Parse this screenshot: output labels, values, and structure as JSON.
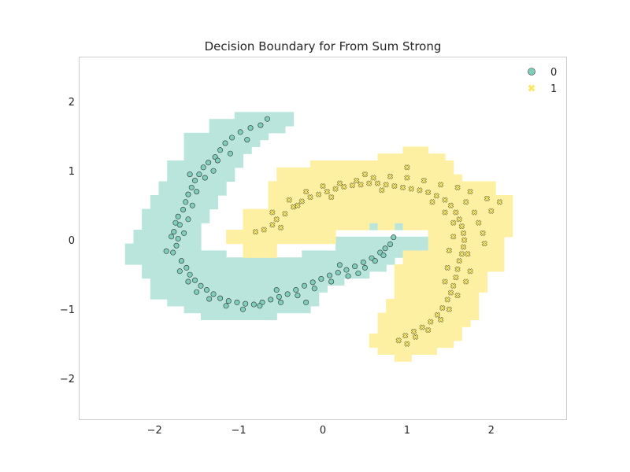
{
  "chart_data": {
    "type": "scatter",
    "title": "Decision Boundary for From Sum Strong",
    "xlabel": "",
    "ylabel": "",
    "xlim": [
      -2.9,
      2.9
    ],
    "ylim": [
      -2.6,
      2.65
    ],
    "x_ticks": [
      -2,
      -1,
      0,
      1,
      2
    ],
    "y_ticks": [
      -2,
      -1,
      0,
      1,
      2
    ],
    "x_tick_labels": [
      "−2",
      "−1",
      "0",
      "1",
      "2"
    ],
    "y_tick_labels": [
      "−2",
      "−1",
      "0",
      "1",
      "2"
    ],
    "grid": false,
    "legend_placement": "top-right",
    "colors": {
      "class0_point": "#7fcdbb",
      "class0_region": "#b9e5dc",
      "class1_point": "#fde866",
      "class1_region": "#fdf0a3",
      "marker_edge": "#333333",
      "axes_edge": "#cccccc"
    },
    "series": [
      {
        "name": "0",
        "marker": "circle",
        "points": [
          [
            -1.78,
            -0.18
          ],
          [
            -1.86,
            -0.16
          ],
          [
            -1.74,
            -0.08
          ],
          [
            -1.72,
            0.02
          ],
          [
            -1.77,
            0.12
          ],
          [
            -1.7,
            0.22
          ],
          [
            -1.72,
            0.34
          ],
          [
            -1.66,
            0.44
          ],
          [
            -1.63,
            0.55
          ],
          [
            -1.6,
            0.66
          ],
          [
            -1.56,
            0.76
          ],
          [
            -1.52,
            0.86
          ],
          [
            -1.47,
            0.95
          ],
          [
            -1.42,
            1.05
          ],
          [
            -1.36,
            1.12
          ],
          [
            -1.28,
            1.2
          ],
          [
            -1.22,
            1.3
          ],
          [
            -1.16,
            1.4
          ],
          [
            -1.08,
            1.48
          ],
          [
            -0.98,
            1.56
          ],
          [
            -0.86,
            1.62
          ],
          [
            -0.74,
            1.66
          ],
          [
            -0.66,
            1.75
          ],
          [
            -1.68,
            -0.3
          ],
          [
            -1.62,
            -0.4
          ],
          [
            -1.58,
            -0.5
          ],
          [
            -1.52,
            -0.58
          ],
          [
            -1.45,
            -0.66
          ],
          [
            -1.38,
            -0.72
          ],
          [
            -1.3,
            -0.78
          ],
          [
            -1.22,
            -0.84
          ],
          [
            -1.12,
            -0.88
          ],
          [
            -1.02,
            -0.9
          ],
          [
            -0.92,
            -0.92
          ],
          [
            -0.82,
            -0.93
          ],
          [
            -0.72,
            -0.9
          ],
          [
            -0.62,
            -0.86
          ],
          [
            -0.52,
            -0.82
          ],
          [
            -0.42,
            -0.78
          ],
          [
            -0.32,
            -0.72
          ],
          [
            -0.22,
            -0.66
          ],
          [
            -0.12,
            -0.61
          ],
          [
            -0.02,
            -0.56
          ],
          [
            0.08,
            -0.51
          ],
          [
            0.18,
            -0.47
          ],
          [
            0.28,
            -0.43
          ],
          [
            0.38,
            -0.38
          ],
          [
            0.48,
            -0.32
          ],
          [
            0.58,
            -0.26
          ],
          [
            0.68,
            -0.18
          ],
          [
            0.74,
            -0.12
          ],
          [
            0.8,
            -0.06
          ],
          [
            0.84,
            0.04
          ],
          [
            -1.6,
            0.3
          ],
          [
            -1.65,
            0.1
          ],
          [
            -1.8,
            0.05
          ],
          [
            -1.55,
            0.5
          ],
          [
            -1.5,
            0.7
          ],
          [
            -1.4,
            0.9
          ],
          [
            -1.3,
            1.0
          ],
          [
            -1.1,
            1.25
          ],
          [
            -0.9,
            1.45
          ],
          [
            -1.6,
            -0.6
          ],
          [
            -1.5,
            -0.75
          ],
          [
            -1.35,
            -0.85
          ],
          [
            -1.15,
            -0.95
          ],
          [
            -0.95,
            -1.0
          ],
          [
            -0.75,
            -0.95
          ],
          [
            -0.5,
            -0.9
          ],
          [
            -0.3,
            -0.8
          ],
          [
            -0.1,
            -0.7
          ],
          [
            0.1,
            -0.6
          ],
          [
            0.3,
            -0.52
          ],
          [
            0.5,
            -0.4
          ],
          [
            0.62,
            -0.3
          ],
          [
            0.72,
            -0.22
          ],
          [
            -1.7,
            -0.45
          ],
          [
            -1.75,
            0.25
          ],
          [
            -1.58,
            0.95
          ],
          [
            -1.25,
            1.15
          ],
          [
            -0.55,
            -0.72
          ],
          [
            0.2,
            -0.36
          ],
          [
            0.42,
            -0.48
          ],
          [
            -0.2,
            -0.9
          ]
        ]
      },
      {
        "name": "1",
        "marker": "x",
        "points": [
          [
            -0.8,
            0.12
          ],
          [
            -0.7,
            0.15
          ],
          [
            -0.6,
            0.22
          ],
          [
            -0.55,
            0.3
          ],
          [
            -0.45,
            0.38
          ],
          [
            -0.35,
            0.48
          ],
          [
            -0.25,
            0.56
          ],
          [
            -0.15,
            0.62
          ],
          [
            -0.05,
            0.66
          ],
          [
            0.05,
            0.7
          ],
          [
            0.15,
            0.74
          ],
          [
            0.25,
            0.77
          ],
          [
            0.35,
            0.79
          ],
          [
            0.45,
            0.8
          ],
          [
            0.55,
            0.82
          ],
          [
            0.65,
            0.82
          ],
          [
            0.75,
            0.8
          ],
          [
            0.85,
            0.78
          ],
          [
            0.95,
            0.76
          ],
          [
            1.05,
            0.74
          ],
          [
            1.15,
            0.72
          ],
          [
            1.25,
            0.69
          ],
          [
            1.35,
            0.64
          ],
          [
            1.45,
            0.58
          ],
          [
            1.52,
            0.5
          ],
          [
            1.58,
            0.4
          ],
          [
            1.62,
            0.3
          ],
          [
            1.65,
            0.2
          ],
          [
            1.67,
            0.1
          ],
          [
            1.68,
            0.0
          ],
          [
            1.67,
            -0.1
          ],
          [
            1.65,
            -0.2
          ],
          [
            1.62,
            -0.3
          ],
          [
            1.6,
            -0.42
          ],
          [
            1.58,
            -0.54
          ],
          [
            1.55,
            -0.66
          ],
          [
            1.52,
            -0.76
          ],
          [
            1.48,
            -0.86
          ],
          [
            1.42,
            -0.98
          ],
          [
            1.36,
            -1.08
          ],
          [
            1.28,
            -1.18
          ],
          [
            1.18,
            -1.26
          ],
          [
            1.08,
            -1.32
          ],
          [
            0.98,
            -1.38
          ],
          [
            0.9,
            -1.45
          ],
          [
            1.0,
            -1.5
          ],
          [
            1.1,
            -1.4
          ],
          [
            1.7,
            0.55
          ],
          [
            1.8,
            0.4
          ],
          [
            1.85,
            0.25
          ],
          [
            1.9,
            0.1
          ],
          [
            2.0,
            0.42
          ],
          [
            1.95,
            0.6
          ],
          [
            1.75,
            0.7
          ],
          [
            1.6,
            0.76
          ],
          [
            1.4,
            0.8
          ],
          [
            1.2,
            0.86
          ],
          [
            1.0,
            0.9
          ],
          [
            0.8,
            0.92
          ],
          [
            0.6,
            0.9
          ],
          [
            0.4,
            0.86
          ],
          [
            0.2,
            0.82
          ],
          [
            0.0,
            0.78
          ],
          [
            -0.2,
            0.7
          ],
          [
            -0.4,
            0.58
          ],
          [
            -0.6,
            0.4
          ],
          [
            1.72,
            -0.2
          ],
          [
            1.75,
            -0.45
          ],
          [
            1.7,
            -0.6
          ],
          [
            1.6,
            -0.8
          ],
          [
            1.5,
            -1.0
          ],
          [
            1.4,
            -1.15
          ],
          [
            1.25,
            -1.3
          ],
          [
            1.3,
            0.55
          ],
          [
            1.45,
            0.4
          ],
          [
            1.55,
            0.25
          ],
          [
            1.55,
            0.05
          ],
          [
            1.5,
            -0.15
          ],
          [
            1.48,
            -0.4
          ],
          [
            1.45,
            -0.6
          ],
          [
            0.7,
            0.72
          ],
          [
            0.1,
            0.62
          ],
          [
            -0.5,
            0.18
          ],
          [
            2.1,
            0.55
          ],
          [
            1.92,
            -0.05
          ],
          [
            1.0,
            1.05
          ],
          [
            0.5,
            0.95
          ],
          [
            -0.3,
            0.5
          ]
        ]
      }
    ],
    "decision_regions": {
      "cell_size": 0.1,
      "class0_cells": [
        [
          -1.0,
          1.8,
          -0.4,
          1.8
        ],
        [
          -1.3,
          1.7,
          -0.4,
          1.7
        ],
        [
          -1.3,
          1.6,
          -0.5,
          1.6
        ],
        [
          -1.6,
          1.5,
          -0.7,
          1.5
        ],
        [
          -1.6,
          1.4,
          -0.8,
          1.4
        ],
        [
          -1.6,
          1.3,
          -0.9,
          1.3
        ],
        [
          -1.6,
          1.2,
          -1.0,
          1.2
        ],
        [
          -1.8,
          1.1,
          -1.0,
          1.1
        ],
        [
          -1.8,
          1.0,
          -1.1,
          1.0
        ],
        [
          -1.8,
          0.9,
          -1.1,
          0.9
        ],
        [
          -1.9,
          0.8,
          -1.2,
          0.8
        ],
        [
          -1.9,
          0.7,
          -1.2,
          0.7
        ],
        [
          -2.0,
          0.6,
          -1.3,
          0.6
        ],
        [
          -2.0,
          0.5,
          -1.3,
          0.5
        ],
        [
          -2.1,
          0.4,
          -1.4,
          0.4
        ],
        [
          -2.1,
          0.3,
          -1.4,
          0.3
        ],
        [
          -2.1,
          0.2,
          -1.5,
          0.2
        ],
        [
          -2.2,
          0.1,
          -1.5,
          0.1
        ],
        [
          0.6,
          0.2,
          0.6,
          0.2
        ],
        [
          0.9,
          0.2,
          0.9,
          0.2
        ],
        [
          -2.2,
          0.0,
          -1.5,
          0.0
        ],
        [
          0.2,
          0.0,
          1.2,
          0.0
        ],
        [
          -2.3,
          -0.1,
          -1.5,
          -0.1
        ],
        [
          0.2,
          -0.1,
          1.2,
          -0.1
        ],
        [
          -2.3,
          -0.2,
          -1.2,
          -0.2
        ],
        [
          -0.2,
          -0.2,
          0.9,
          -0.2
        ],
        [
          -2.3,
          -0.3,
          0.8,
          -0.3
        ],
        [
          -2.1,
          -0.4,
          0.7,
          -0.4
        ],
        [
          -2.1,
          -0.5,
          0.5,
          -0.5
        ],
        [
          -2.0,
          -0.6,
          0.2,
          -0.6
        ],
        [
          -2.0,
          -0.7,
          0.0,
          -0.7
        ],
        [
          -2.0,
          -0.8,
          -0.1,
          -0.8
        ],
        [
          -1.8,
          -0.9,
          -0.1,
          -0.9
        ],
        [
          -1.6,
          -1.0,
          -0.2,
          -1.0
        ],
        [
          -1.4,
          -1.1,
          -0.6,
          -1.1
        ]
      ],
      "class1_cells": [
        [
          1.0,
          1.3,
          1.2,
          1.3
        ],
        [
          0.7,
          1.2,
          1.4,
          1.2
        ],
        [
          -0.1,
          1.1,
          1.5,
          1.1
        ],
        [
          -0.5,
          1.0,
          1.5,
          1.0
        ],
        [
          -0.5,
          0.9,
          1.6,
          0.9
        ],
        [
          -0.6,
          0.8,
          2.0,
          0.8
        ],
        [
          -0.6,
          0.7,
          2.0,
          0.7
        ],
        [
          -0.6,
          0.6,
          2.2,
          0.6
        ],
        [
          -0.6,
          0.5,
          2.2,
          0.5
        ],
        [
          -0.9,
          0.4,
          2.2,
          0.4
        ],
        [
          -0.9,
          0.3,
          2.2,
          0.3
        ],
        [
          -0.9,
          0.2,
          0.5,
          0.2
        ],
        [
          0.7,
          0.2,
          0.8,
          0.2
        ],
        [
          1.0,
          0.2,
          2.2,
          0.2
        ],
        [
          -1.1,
          0.1,
          0.1,
          0.1
        ],
        [
          1.3,
          0.1,
          2.2,
          0.1
        ],
        [
          -1.1,
          0.0,
          -0.7,
          0.0
        ],
        [
          -0.6,
          0.0,
          0.1,
          0.0
        ],
        [
          1.3,
          0.0,
          2.1,
          0.0
        ],
        [
          -0.9,
          -0.1,
          -0.6,
          -0.1
        ],
        [
          1.3,
          -0.1,
          2.1,
          -0.1
        ],
        [
          -0.9,
          -0.2,
          -0.6,
          -0.2
        ],
        [
          1.0,
          -0.2,
          2.1,
          -0.2
        ],
        [
          1.0,
          -0.3,
          2.1,
          -0.3
        ],
        [
          0.9,
          -0.4,
          2.1,
          -0.4
        ],
        [
          0.9,
          -0.5,
          1.9,
          -0.5
        ],
        [
          0.9,
          -0.6,
          1.9,
          -0.6
        ],
        [
          0.9,
          -0.7,
          1.9,
          -0.7
        ],
        [
          0.9,
          -0.8,
          1.8,
          -0.8
        ],
        [
          0.8,
          -0.9,
          1.8,
          -0.9
        ],
        [
          0.8,
          -1.0,
          1.8,
          -1.0
        ],
        [
          0.7,
          -1.1,
          1.8,
          -1.1
        ],
        [
          0.7,
          -1.2,
          1.7,
          -1.2
        ],
        [
          0.7,
          -1.3,
          1.6,
          -1.3
        ],
        [
          0.6,
          -1.4,
          1.6,
          -1.4
        ],
        [
          0.6,
          -1.5,
          1.5,
          -1.5
        ],
        [
          0.7,
          -1.6,
          1.3,
          -1.6
        ],
        [
          0.9,
          -1.7,
          1.0,
          -1.7
        ]
      ]
    }
  }
}
